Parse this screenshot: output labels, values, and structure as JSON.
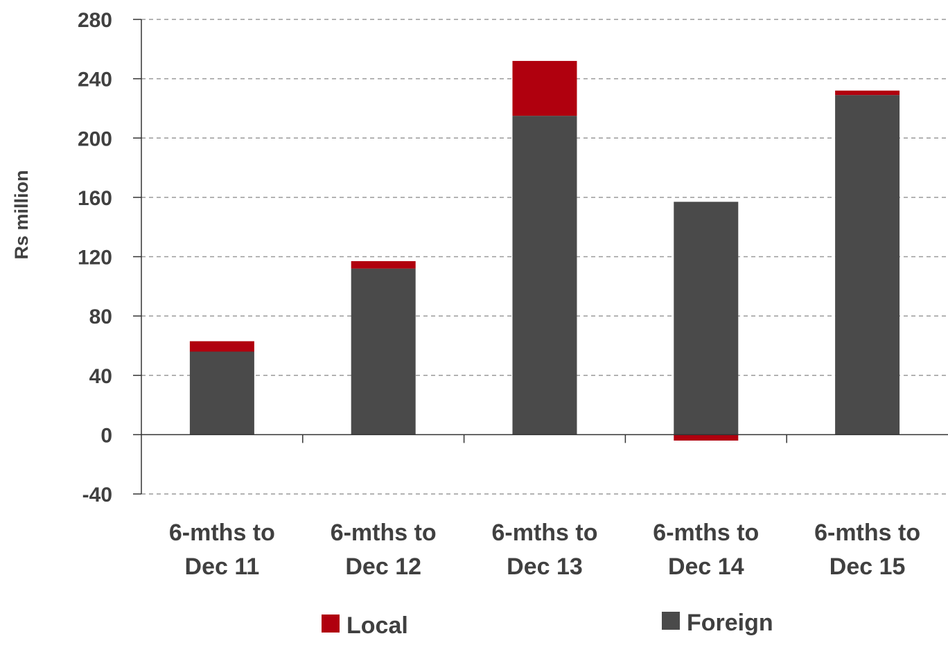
{
  "chart_data": {
    "type": "bar",
    "stacked": true,
    "categories": [
      [
        "6-mths to",
        "Dec 11"
      ],
      [
        "6-mths to",
        "Dec 12"
      ],
      [
        "6-mths to",
        "Dec 13"
      ],
      [
        "6-mths to",
        "Dec 14"
      ],
      [
        "6-mths to",
        "Dec 15"
      ]
    ],
    "series": [
      {
        "name": "Foreign",
        "color": "#4a4a4a",
        "values": [
          56,
          112,
          215,
          157,
          229
        ]
      },
      {
        "name": "Local",
        "color": "#b0000e",
        "values": [
          7,
          5,
          37,
          -4,
          3
        ]
      }
    ],
    "ylabel": "Rs million",
    "ylim": [
      -40,
      280
    ],
    "yticks": [
      -40,
      0,
      40,
      80,
      120,
      160,
      200,
      240,
      280
    ],
    "grid": true,
    "legend": "bottom",
    "legend_order": [
      "Local",
      "Foreign"
    ]
  }
}
